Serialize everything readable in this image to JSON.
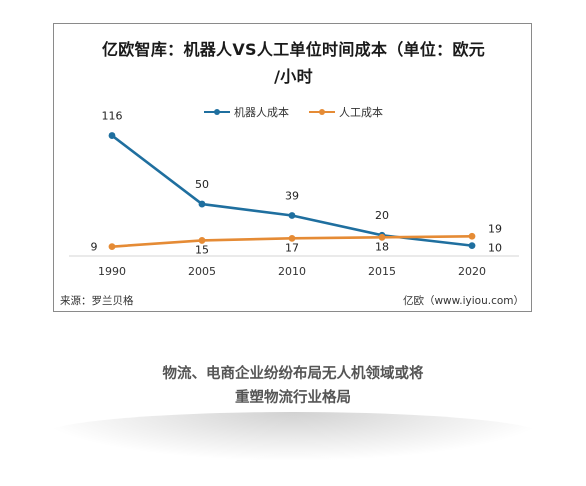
{
  "chart_data": {
    "type": "line",
    "title": "亿欧智库：机器人VS人工单位时间成本（单位：欧元\n/小时",
    "categories": [
      "1990",
      "2005",
      "2010",
      "2015",
      "2020"
    ],
    "series": [
      {
        "name": "机器人成本",
        "values": [
          116,
          50,
          39,
          20,
          10
        ],
        "color": "#1f6f9f"
      },
      {
        "name": "人工成本",
        "values": [
          9,
          15,
          17,
          18,
          19
        ],
        "color": "#e58b35"
      }
    ],
    "ylim": [
      0,
      130
    ],
    "grid": false,
    "legend_position": "top",
    "source": "来源：罗兰贝格",
    "credit": "亿欧（www.iyiou.com）"
  },
  "caption": "物流、电商企业纷纷布局无人机领域或将\n重塑物流行业格局"
}
